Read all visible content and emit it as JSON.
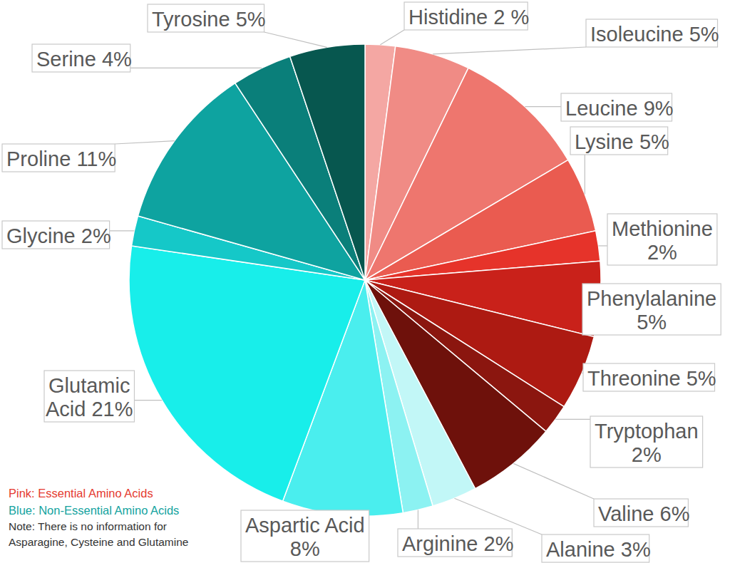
{
  "chart_data": {
    "type": "pie",
    "categories": [
      "Histidine",
      "Isoleucine",
      "Leucine",
      "Lysine",
      "Methionine",
      "Phenylalanine",
      "Threonine",
      "Tryptophan",
      "Valine",
      "Alanine",
      "Arginine",
      "Aspartic Acid",
      "Glutamic Acid",
      "Glycine",
      "Proline",
      "Serine",
      "Tyrosine"
    ],
    "values": [
      2,
      5,
      9,
      5,
      2,
      5,
      5,
      2,
      6,
      3,
      2,
      8,
      21,
      2,
      11,
      4,
      5
    ],
    "value_labels": [
      "2 %",
      "5%",
      "9%",
      "5%",
      "2%",
      "5%",
      "5%",
      "2%",
      "6%",
      "3%",
      "2%",
      "8%",
      "21%",
      "2%",
      "11%",
      "4%",
      "5%"
    ],
    "colors": [
      "#f4a7a3",
      "#f08b85",
      "#ee766e",
      "#ea5b50",
      "#e6332a",
      "#c9211a",
      "#ad1a12",
      "#8b160f",
      "#6e110b",
      "#c2f7f7",
      "#8cf2f2",
      "#4aeeee",
      "#18eeea",
      "#15c8c8",
      "#0ea3a0",
      "#0a7f7a",
      "#07574f"
    ],
    "data_labels": true,
    "annotations": [
      "Pink: Essential Amino Acids",
      "Blue: Non-Essential Amino Acids",
      "Note: There is no information for Asparagine, Cysteine and Glutamine"
    ]
  }
}
